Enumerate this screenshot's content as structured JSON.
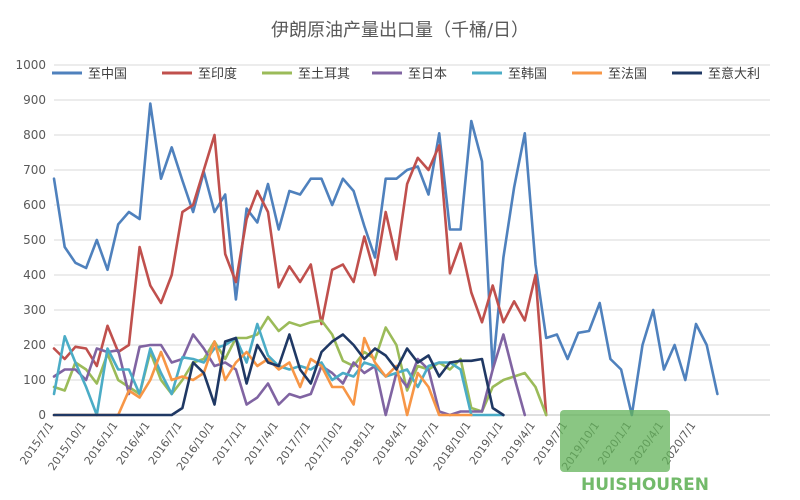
{
  "chart_data": {
    "type": "line",
    "title": "伊朗原油产量出口量（千桶/日）",
    "xlabel": "",
    "ylabel": "",
    "ylim": [
      0,
      1000
    ],
    "yticks": [
      0,
      100,
      200,
      300,
      400,
      500,
      600,
      700,
      800,
      900,
      1000
    ],
    "legend_position": "top",
    "grid": true,
    "x_start": "2015/7",
    "x_tick_labels": [
      "2015/7/1",
      "2015/10/1",
      "2016/1/1",
      "2016/4/1",
      "2016/7/1",
      "2016/10/1",
      "2017/1/1",
      "2017/4/1",
      "2017/7/1",
      "2017/10/1",
      "2018/1/1",
      "2018/4/1",
      "2018/7/1",
      "2018/10/1",
      "2019/1/1",
      "2019/4/1",
      "2019/7/1",
      "2019/10/1",
      "2020/1/1",
      "2020/4/1",
      "2020/7/1"
    ],
    "watermark": "HUISHOUREN",
    "series": [
      {
        "name": "至中国",
        "color": "#4f81bd",
        "values": [
          675,
          480,
          435,
          420,
          500,
          415,
          545,
          580,
          560,
          890,
          675,
          765,
          670,
          580,
          695,
          580,
          630,
          330,
          590,
          550,
          660,
          530,
          640,
          630,
          675,
          675,
          600,
          675,
          640,
          540,
          450,
          675,
          675,
          700,
          710,
          630,
          805,
          530,
          530,
          840,
          725,
          130,
          450,
          650,
          805,
          430,
          220,
          230,
          160,
          235,
          240,
          320,
          160,
          130,
          0,
          200,
          300,
          130,
          200,
          100,
          260,
          200,
          60
        ]
      },
      {
        "name": "至印度",
        "color": "#c0504d",
        "values": [
          190,
          160,
          195,
          190,
          140,
          255,
          180,
          200,
          480,
          370,
          320,
          400,
          580,
          600,
          700,
          800,
          460,
          380,
          560,
          640,
          580,
          365,
          425,
          380,
          430,
          260,
          415,
          430,
          380,
          510,
          400,
          580,
          445,
          660,
          735,
          700,
          770,
          405,
          490,
          350,
          265,
          370,
          265,
          325,
          270,
          400,
          0
        ]
      },
      {
        "name": "至土耳其",
        "color": "#9bbb59",
        "values": [
          80,
          70,
          150,
          130,
          90,
          175,
          100,
          80,
          60,
          180,
          100,
          60,
          100,
          150,
          160,
          210,
          160,
          220,
          220,
          230,
          280,
          240,
          265,
          255,
          265,
          270,
          230,
          155,
          140,
          180,
          160,
          250,
          200,
          70,
          140,
          130,
          150,
          130,
          160,
          20,
          10,
          80,
          100,
          110,
          120,
          80,
          0
        ]
      },
      {
        "name": "至日本",
        "color": "#8064a2",
        "values": [
          110,
          130,
          130,
          100,
          190,
          180,
          185,
          60,
          195,
          200,
          200,
          150,
          160,
          230,
          190,
          140,
          150,
          130,
          30,
          50,
          90,
          30,
          60,
          50,
          60,
          140,
          120,
          90,
          150,
          120,
          140,
          0,
          120,
          80,
          160,
          130,
          10,
          0,
          10,
          10,
          10,
          130,
          230,
          110,
          0
        ]
      },
      {
        "name": "至韩国",
        "color": "#4bacc6",
        "values": [
          60,
          225,
          150,
          80,
          0,
          190,
          130,
          130,
          60,
          190,
          120,
          60,
          165,
          160,
          150,
          190,
          200,
          220,
          150,
          260,
          170,
          140,
          130,
          140,
          130,
          150,
          100,
          120,
          110,
          150,
          140,
          110,
          120,
          130,
          80,
          140,
          150,
          150,
          130,
          0,
          0,
          0,
          0
        ]
      },
      {
        "name": "至法国",
        "color": "#f79646",
        "values": [
          0,
          0,
          0,
          0,
          0,
          0,
          0,
          70,
          50,
          100,
          180,
          100,
          110,
          100,
          120,
          210,
          100,
          150,
          180,
          140,
          160,
          130,
          150,
          80,
          160,
          140,
          80,
          80,
          30,
          220,
          150,
          110,
          140,
          0,
          120,
          80,
          0,
          0,
          0,
          0
        ]
      },
      {
        "name": "至意大利",
        "color": "#1f3864",
        "values": [
          0,
          0,
          0,
          0,
          0,
          0,
          0,
          0,
          0,
          0,
          0,
          0,
          20,
          150,
          120,
          30,
          210,
          220,
          90,
          200,
          150,
          140,
          230,
          130,
          90,
          180,
          210,
          230,
          200,
          160,
          190,
          170,
          130,
          190,
          150,
          170,
          110,
          150,
          155,
          155,
          160,
          20,
          0
        ]
      }
    ]
  }
}
